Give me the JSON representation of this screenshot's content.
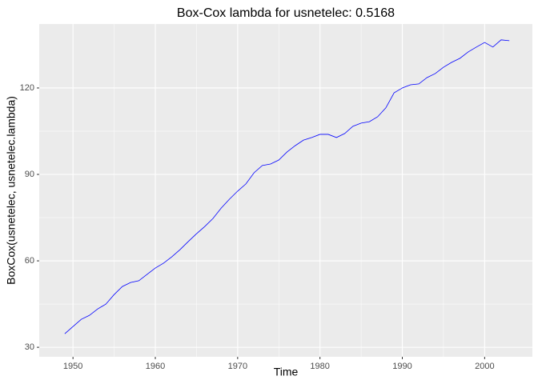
{
  "chart_data": {
    "type": "line",
    "title": "Box-Cox lambda for usnetelec:  0.5168",
    "x_label": "Time",
    "y_label": "BoxCox(usnetelec, usnetelec.lambda)",
    "x": [
      1949,
      1950,
      1951,
      1952,
      1953,
      1954,
      1955,
      1956,
      1957,
      1958,
      1959,
      1960,
      1961,
      1962,
      1963,
      1964,
      1965,
      1966,
      1967,
      1968,
      1969,
      1970,
      1971,
      1972,
      1973,
      1974,
      1975,
      1976,
      1977,
      1978,
      1979,
      1980,
      1981,
      1982,
      1983,
      1984,
      1985,
      1986,
      1987,
      1988,
      1989,
      1990,
      1991,
      1992,
      1993,
      1994,
      1995,
      1996,
      1997,
      1998,
      1999,
      2000,
      2001,
      2002,
      2003
    ],
    "values": [
      34.7,
      37.2,
      39.7,
      41.1,
      43.3,
      45.0,
      48.3,
      51.1,
      52.5,
      53.1,
      55.3,
      57.5,
      59.2,
      61.4,
      63.9,
      66.7,
      69.4,
      71.9,
      74.7,
      78.3,
      81.4,
      84.2,
      86.7,
      90.6,
      93.1,
      93.6,
      95.0,
      97.8,
      100.0,
      101.9,
      102.8,
      103.9,
      103.9,
      102.8,
      104.2,
      106.7,
      107.8,
      108.3,
      110.0,
      113.1,
      118.3,
      120.0,
      121.1,
      121.4,
      123.6,
      125.0,
      127.2,
      128.9,
      130.3,
      132.5,
      134.2,
      135.8,
      134.2,
      136.7,
      136.4
    ],
    "color": "#0000ff",
    "xlim": [
      1945.9,
      2005.8
    ],
    "ylim": [
      26.7,
      142.2
    ],
    "xticks": [
      1950,
      1960,
      1970,
      1980,
      1990,
      2000
    ],
    "yticks": [
      30,
      60,
      90,
      120
    ],
    "grid": true
  }
}
